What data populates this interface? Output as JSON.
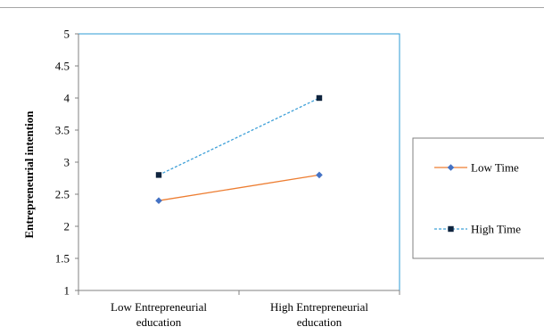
{
  "chart_data": {
    "type": "line",
    "categories": [
      [
        "Low Entrepreneurial",
        "education"
      ],
      [
        "High Entrepreneurial",
        "education"
      ]
    ],
    "series": [
      {
        "name": "Low Time",
        "values": [
          2.4,
          2.8
        ],
        "color": "#ED7D31",
        "marker": "diamond",
        "dash": "solid",
        "marker_color": "#4472C4"
      },
      {
        "name": "High Time",
        "values": [
          2.8,
          4.0
        ],
        "color": "#3EA0D8",
        "marker": "square",
        "dash": "dashed",
        "marker_color": "#0F243E"
      }
    ],
    "ylabel": "Entrepreneurial intention",
    "xlabel": "",
    "ylim": [
      1,
      5
    ],
    "yticks": [
      "1",
      "1.5",
      "2",
      "2.5",
      "3",
      "3.5",
      "4",
      "4.5",
      "5"
    ],
    "grid": false,
    "legend_position": "right",
    "plot_border_color": "#2E9BD6"
  }
}
